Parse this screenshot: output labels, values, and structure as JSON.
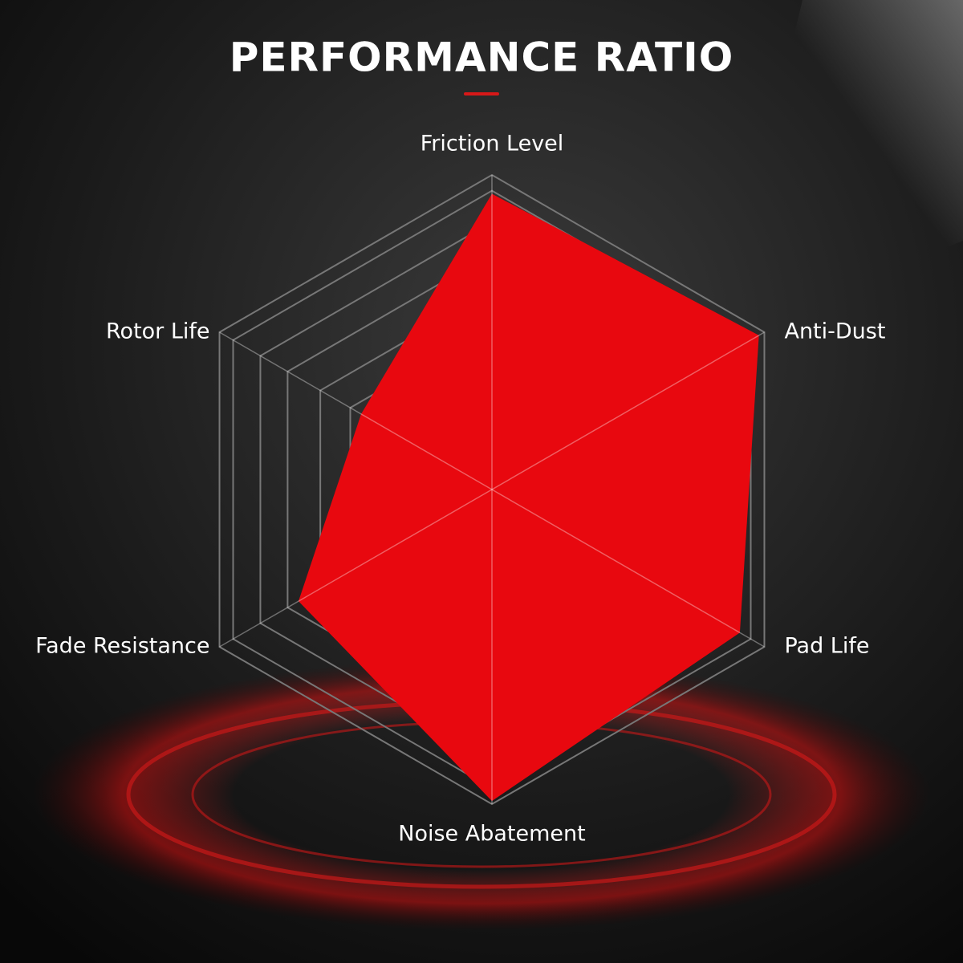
{
  "chart_data": {
    "type": "radar",
    "title": "PERFORMANCE RATIO",
    "categories": [
      "Friction Level",
      "Anti-Dust",
      "Pad Life",
      "Noise Abatement",
      "Fade Resistance",
      "Rotor Life"
    ],
    "values": [
      94,
      98,
      91,
      99,
      71,
      48
    ],
    "color": "#e8080f",
    "rlim": [
      0,
      100
    ],
    "rticks": [
      52,
      63,
      75,
      85,
      95,
      100
    ],
    "grid": true
  }
}
